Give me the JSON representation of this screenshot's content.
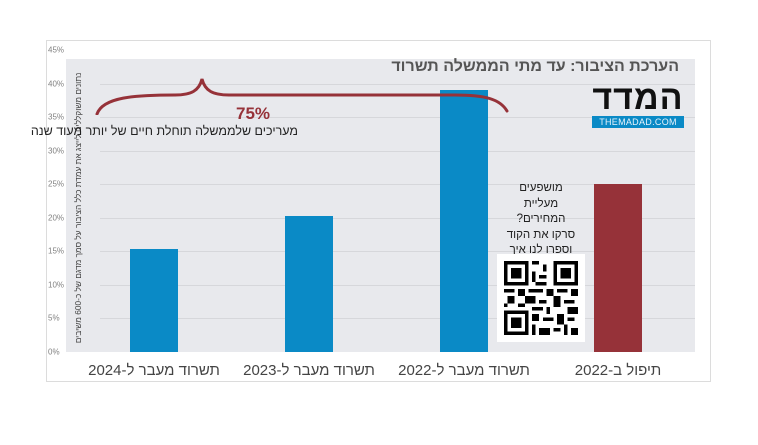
{
  "title": "הערכת הציבור: עד מתי הממשלה תשרוד",
  "logo": {
    "main": "המדד",
    "sub": "THEMADAD.COM"
  },
  "vertical_note": "נתונים משוקללים לייצג את עמדת כלל הציבור על סמך מדגם של כ-600 משיבים",
  "annotation": {
    "percent": "75%",
    "text": "מעריכים שלממשלה תוחלת חיים של יותר מעוד שנה"
  },
  "qr_callout": {
    "lines": [
      "מושפעים",
      "מעליית",
      "המחירים?",
      "סרקו את הקוד",
      "וספרו לנו איך"
    ]
  },
  "colors": {
    "blue": "#0a8ac6",
    "red": "#963239",
    "plot_bg": "#e8e9ed"
  },
  "y_ticks": [
    "0%",
    "5%",
    "10%",
    "15%",
    "20%",
    "25%",
    "30%",
    "35%",
    "40%",
    "45%"
  ],
  "chart_data": {
    "type": "bar",
    "title": "הערכת הציבור: עד מתי הממשלה תשרוד",
    "categories": [
      "תשרוד מעבר ל-2024",
      "תשרוד מעבר ל-2023",
      "תשרוד מעבר ל-2022",
      "תיפול ב-2022"
    ],
    "values": [
      15.3,
      20.3,
      39.1,
      25.0
    ],
    "bar_colors": [
      "#0a8ac6",
      "#0a8ac6",
      "#0a8ac6",
      "#963239"
    ],
    "xlabel": "",
    "ylabel": "",
    "ylim": [
      0,
      45
    ],
    "y_tick_step": 5,
    "y_format": "percent",
    "grid": true,
    "legend": null,
    "annotations": [
      {
        "text": "75%",
        "note": "מעריכים שלממשלה תוחלת חיים של יותר מעוד שנה",
        "spans_categories": [
          0,
          1,
          2
        ]
      }
    ]
  },
  "x_labels": [
    "תשרוד מעבר ל-2024",
    "תשרוד מעבר ל-2023",
    "תשרוד מעבר ל-2022",
    "תיפול ב-2022"
  ]
}
